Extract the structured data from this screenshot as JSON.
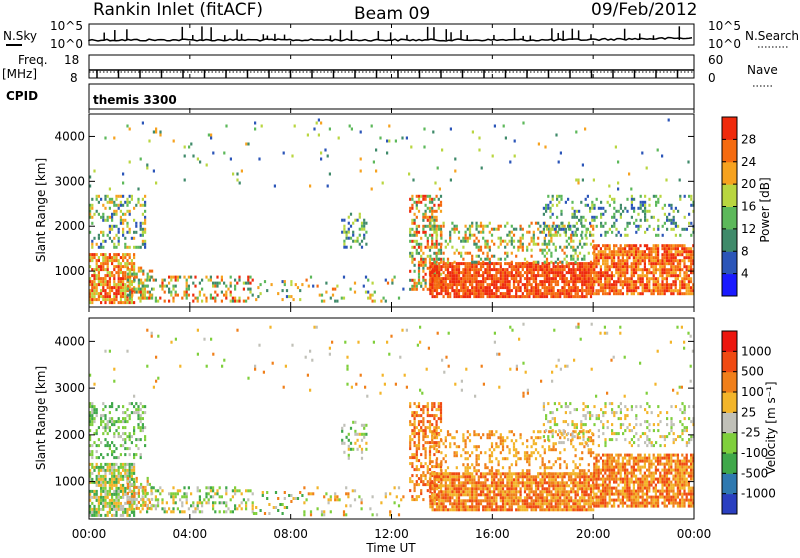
{
  "header": {
    "station": "Rankin Inlet (fitACF)",
    "beam": "Beam 09",
    "date": "09/Feb/2012"
  },
  "noise_panel": {
    "left_label": "N.Sky",
    "right_label": "N.Search",
    "left_ticks": [
      "10^5",
      "10^0"
    ],
    "right_ticks": [
      "10^5",
      "10^0"
    ]
  },
  "freq_panel": {
    "left_label_1": "Freq.",
    "left_label_2": "[MHz]",
    "right_label": "Nave",
    "left_ticks": [
      "18",
      "8"
    ],
    "right_ticks": [
      "60",
      "0"
    ]
  },
  "cpid": {
    "label": "CPID",
    "value": "themis 3300"
  },
  "chart_data": [
    {
      "type": "heatmap",
      "name": "power",
      "ylabel": "Slant Range [km]",
      "yticks": [
        1000,
        2000,
        3000,
        4000
      ],
      "ylim": [
        200,
        4500
      ],
      "colorbar": {
        "label": "Power [dB]",
        "ticks": [
          "4",
          "8",
          "12",
          "16",
          "20",
          "24",
          "28"
        ],
        "colors": [
          "#1a1aff",
          "#2b55b8",
          "#3f8a6a",
          "#5cb85a",
          "#b9d640",
          "#f6a21f",
          "#f56b10",
          "#ef2a0c"
        ]
      }
    },
    {
      "type": "heatmap",
      "name": "velocity",
      "ylabel": "Slant Range [km]",
      "yticks": [
        1000,
        2000,
        3000,
        4000
      ],
      "ylim": [
        200,
        4500
      ],
      "colorbar": {
        "label": "Velocity  [m s⁻¹]",
        "ticks": [
          "1000",
          "500",
          "100",
          "25",
          "-25",
          "-100",
          "-500",
          "-1000"
        ],
        "colors": [
          "#2a3fc0",
          "#2f79b0",
          "#3fa84a",
          "#7fcf3c",
          "#c0c0b8",
          "#f3b52a",
          "#f07f1a",
          "#f04a12",
          "#ec160e"
        ]
      }
    }
  ],
  "time_axis": {
    "label": "Time UT",
    "ticks": [
      "00:00",
      "04:00",
      "08:00",
      "12:00",
      "16:00",
      "20:00",
      "00:00"
    ]
  }
}
